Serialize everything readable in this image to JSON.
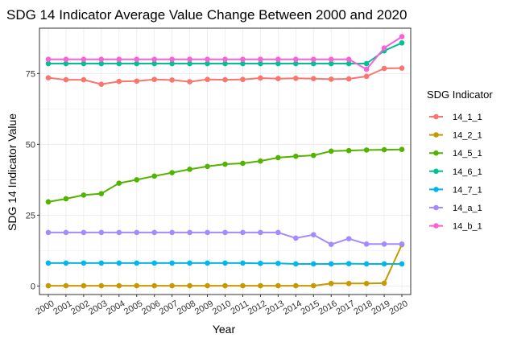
{
  "chart_data": {
    "type": "line",
    "title": "SDG 14 Indicator Average Value Change Between 2000 and 2020",
    "xlabel": "Year",
    "ylabel": "SDG 14 Indicator Value",
    "x": [
      "2000",
      "2001",
      "2002",
      "2003",
      "2004",
      "2005",
      "2006",
      "2007",
      "2008",
      "2009",
      "2010",
      "2011",
      "2012",
      "2013",
      "2014",
      "2015",
      "2016",
      "2017",
      "2018",
      "2019",
      "2020"
    ],
    "y_ticks": [
      0,
      25,
      50,
      75
    ],
    "ylim": [
      -3,
      91
    ],
    "grid": true,
    "legend_title": "SDG Indicator",
    "legend_position": "right",
    "series": [
      {
        "name": "14_1_1",
        "color": "#F8766D",
        "values": [
          73.5,
          72.8,
          72.8,
          71.2,
          72.2,
          72.3,
          72.9,
          72.7,
          72.1,
          72.9,
          72.8,
          72.9,
          73.4,
          73.2,
          73.3,
          73.2,
          73.0,
          73.1,
          74.0,
          76.8,
          76.9
        ]
      },
      {
        "name": "14_2_1",
        "color": "#C49A00",
        "values": [
          0.1,
          0.1,
          0.1,
          0.1,
          0.1,
          0.1,
          0.1,
          0.1,
          0.1,
          0.1,
          0.1,
          0.1,
          0.1,
          0.1,
          0.1,
          0.1,
          0.9,
          0.9,
          0.9,
          1.0,
          14.6
        ]
      },
      {
        "name": "14_5_1",
        "color": "#53B400",
        "values": [
          29.7,
          30.8,
          32.1,
          32.6,
          36.3,
          37.5,
          38.8,
          40.0,
          41.2,
          42.2,
          43.0,
          43.3,
          44.1,
          45.3,
          45.8,
          46.1,
          47.6,
          47.8,
          48.0,
          48.1,
          48.2
        ]
      },
      {
        "name": "14_6_1",
        "color": "#00C094",
        "values": [
          78.5,
          78.5,
          78.5,
          78.5,
          78.5,
          78.5,
          78.5,
          78.5,
          78.5,
          78.5,
          78.5,
          78.5,
          78.5,
          78.5,
          78.5,
          78.5,
          78.5,
          78.5,
          78.5,
          83.0,
          85.8
        ]
      },
      {
        "name": "14_7_1",
        "color": "#00B6EB",
        "values": [
          8.1,
          8.1,
          8.1,
          8.1,
          8.1,
          8.1,
          8.1,
          8.1,
          8.1,
          8.1,
          8.1,
          8.1,
          8.0,
          8.0,
          7.8,
          7.8,
          7.8,
          7.9,
          7.8,
          7.8,
          7.8
        ]
      },
      {
        "name": "14_a_1",
        "color": "#A58AFF",
        "values": [
          18.9,
          18.9,
          18.9,
          18.9,
          18.9,
          18.9,
          18.9,
          18.9,
          18.9,
          18.9,
          18.9,
          18.9,
          18.9,
          18.9,
          16.9,
          18.1,
          14.7,
          16.7,
          14.8,
          14.8,
          14.8
        ]
      },
      {
        "name": "14_b_1",
        "color": "#FB61D7",
        "values": [
          80.0,
          80.0,
          80.0,
          80.0,
          80.0,
          80.0,
          80.0,
          80.0,
          80.0,
          80.0,
          80.0,
          80.0,
          80.0,
          80.0,
          80.0,
          80.0,
          80.0,
          80.0,
          76.5,
          84.0,
          88.0
        ]
      }
    ]
  }
}
